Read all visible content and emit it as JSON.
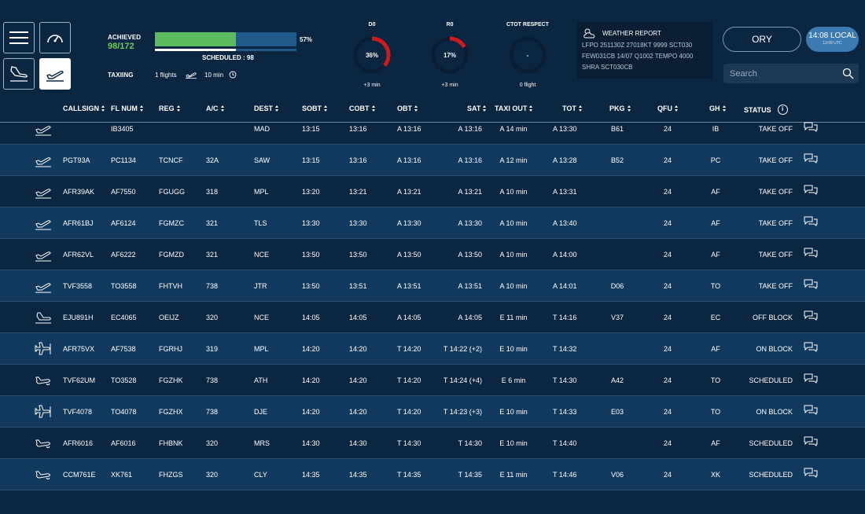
{
  "toolbar": {
    "buttons": [
      {
        "name": "menu"
      },
      {
        "name": "dashboard-gauge"
      },
      {
        "name": "arrivals"
      },
      {
        "name": "departures"
      }
    ]
  },
  "stats": {
    "achieved_label": "ACHIEVED",
    "achieved_value": "98/172",
    "progress_percent_label": "57%",
    "progress_fraction": 0.57,
    "scheduled_label": "SCHEDULED : 98",
    "scheduled_fraction": 0.57,
    "taxiing_label": "TAXIING",
    "taxiing_flights": "1 flights",
    "taxiing_time": "10 min"
  },
  "gauges": [
    {
      "title": "D0",
      "value": "36%",
      "fraction": 0.36,
      "sub": "+3 min"
    },
    {
      "title": "R0",
      "value": "17%",
      "fraction": 0.17,
      "sub": "+3 min"
    },
    {
      "title": "CTOT RESPECT",
      "value": "-",
      "fraction": 0,
      "sub": "0 flight"
    }
  ],
  "weather": {
    "title": "WEATHER REPORT",
    "lines": [
      "LFPO 251130Z 27018KT 9999 SCT030",
      "FEW031CB 14/07 Q1002 TEMPO 4000",
      "SHRA SCT030CB"
    ]
  },
  "airport": "ORY",
  "time": {
    "main": "14:08 LOCAL",
    "sub": "13:08 UTC"
  },
  "search": {
    "placeholder": "Search"
  },
  "columns": [
    "CALLSIGN",
    "FL NUM",
    "REG",
    "A/C",
    "DEST",
    "SOBT",
    "COBT",
    "OBT",
    "SAT",
    "TAXI OUT",
    "TOT",
    "PKG",
    "QFU",
    "GH",
    "STATUS"
  ],
  "rows": [
    {
      "icon": "takeoff-icon",
      "callsign": "",
      "flnum": "IB3405",
      "reg": "",
      "ac": "",
      "dest": "MAD",
      "sobt": "13:15",
      "cobt": "13:16",
      "obt": "A 13:16",
      "sat": "A 13:16",
      "taxi": "A 14 min",
      "tot": "A 13:30",
      "pkg": "B61",
      "qfu": "24",
      "gh": "IB",
      "status": "TAKE OFF"
    },
    {
      "icon": "takeoff-icon",
      "callsign": "PGT93A",
      "flnum": "PC1134",
      "reg": "TCNCF",
      "ac": "32A",
      "dest": "SAW",
      "sobt": "13:15",
      "cobt": "13:16",
      "obt": "A 13:16",
      "sat": "A 13:16",
      "taxi": "A 12 min",
      "tot": "A 13:28",
      "pkg": "B52",
      "qfu": "24",
      "gh": "PC",
      "status": "TAKE OFF"
    },
    {
      "icon": "takeoff-icon",
      "callsign": "AFR39AK",
      "flnum": "AF7550",
      "reg": "FGUGG",
      "ac": "318",
      "dest": "MPL",
      "sobt": "13:20",
      "cobt": "13:21",
      "obt": "A 13:21",
      "sat": "A 13:21",
      "taxi": "A 10 min",
      "tot": "A 13:31",
      "pkg": "",
      "qfu": "24",
      "gh": "AF",
      "status": "TAKE OFF"
    },
    {
      "icon": "takeoff-icon",
      "callsign": "AFR61BJ",
      "flnum": "AF6124",
      "reg": "FGMZC",
      "ac": "321",
      "dest": "TLS",
      "sobt": "13:30",
      "cobt": "13:30",
      "obt": "A 13:30",
      "sat": "A 13:30",
      "taxi": "A 10 min",
      "tot": "A 13:40",
      "pkg": "",
      "qfu": "24",
      "gh": "AF",
      "status": "TAKE OFF"
    },
    {
      "icon": "takeoff-icon",
      "callsign": "AFR62VL",
      "flnum": "AF6222",
      "reg": "FGMZD",
      "ac": "321",
      "dest": "NCE",
      "sobt": "13:50",
      "cobt": "13:50",
      "obt": "A 13:50",
      "sat": "A 13:50",
      "taxi": "A 10 min",
      "tot": "A 14:00",
      "pkg": "",
      "qfu": "24",
      "gh": "AF",
      "status": "TAKE OFF"
    },
    {
      "icon": "takeoff-icon",
      "callsign": "TVF3558",
      "flnum": "TO3558",
      "reg": "FHTVH",
      "ac": "738",
      "dest": "JTR",
      "sobt": "13:50",
      "cobt": "13:51",
      "obt": "A 13:51",
      "sat": "A 13:51",
      "taxi": "A 10 min",
      "tot": "A 14:01",
      "pkg": "D06",
      "qfu": "24",
      "gh": "TO",
      "status": "TAKE OFF"
    },
    {
      "icon": "taxi-icon",
      "callsign": "EJU891H",
      "flnum": "EC4065",
      "reg": "OEIJZ",
      "ac": "320",
      "dest": "NCE",
      "sobt": "14:05",
      "cobt": "14:05",
      "obt": "A 14:05",
      "sat": "A 14:05",
      "taxi": "E 11 min",
      "tot": "T 14:16",
      "pkg": "V37",
      "qfu": "24",
      "gh": "EC",
      "status": "OFF BLOCK"
    },
    {
      "icon": "on-block-icon",
      "callsign": "AFR75VX",
      "flnum": "AF7538",
      "reg": "FGRHJ",
      "ac": "319",
      "dest": "MPL",
      "sobt": "14:20",
      "cobt": "14:20",
      "obt": "T 14:20",
      "sat": "T 14:22 (+2)",
      "taxi": "E 10 min",
      "tot": "T 14:32",
      "pkg": "",
      "qfu": "24",
      "gh": "AF",
      "status": "ON BLOCK"
    },
    {
      "icon": "scheduled-icon",
      "callsign": "TVF62UM",
      "flnum": "TO3528",
      "reg": "FGZHK",
      "ac": "738",
      "dest": "ATH",
      "sobt": "14:20",
      "cobt": "14:20",
      "obt": "T 14:20",
      "sat": "T 14:24 (+4)",
      "taxi": "E 6 min",
      "tot": "T 14:30",
      "pkg": "A42",
      "qfu": "24",
      "gh": "TO",
      "status": "SCHEDULED"
    },
    {
      "icon": "on-block-icon",
      "callsign": "TVF4078",
      "flnum": "TO4078",
      "reg": "FGZHX",
      "ac": "738",
      "dest": "DJE",
      "sobt": "14:20",
      "cobt": "14:20",
      "obt": "T 14:20",
      "sat": "T 14:23 (+3)",
      "taxi": "E 10 min",
      "tot": "T 14:33",
      "pkg": "E03",
      "qfu": "24",
      "gh": "TO",
      "status": "ON BLOCK"
    },
    {
      "icon": "scheduled-icon",
      "callsign": "AFR6016",
      "flnum": "AF6016",
      "reg": "FHBNK",
      "ac": "320",
      "dest": "MRS",
      "sobt": "14:30",
      "cobt": "14:30",
      "obt": "T 14:30",
      "sat": "T 14:30",
      "taxi": "E 10 min",
      "tot": "T 14:40",
      "pkg": "",
      "qfu": "24",
      "gh": "AF",
      "status": "SCHEDULED"
    },
    {
      "icon": "scheduled-icon",
      "callsign": "CCM761E",
      "flnum": "XK761",
      "reg": "FHZGS",
      "ac": "320",
      "dest": "CLY",
      "sobt": "14:35",
      "cobt": "14:35",
      "obt": "T 14:35",
      "sat": "T 14:35",
      "taxi": "E 11 min",
      "tot": "T 14:46",
      "pkg": "V06",
      "qfu": "24",
      "gh": "XK",
      "status": "SCHEDULED"
    }
  ],
  "colors": {
    "background": "#0b2641",
    "row_alt": "#123a5e",
    "progress_green": "#5cbb5c",
    "progress_blue": "#1f5a8a",
    "gauge_red": "#d11a1a",
    "accent_blue": "#3c7ab2"
  }
}
